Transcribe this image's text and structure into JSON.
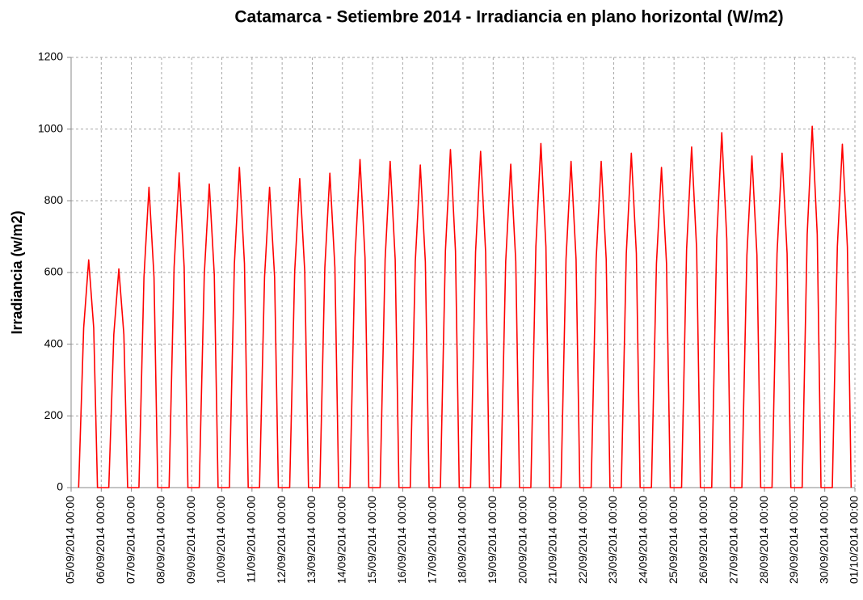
{
  "chart_data": {
    "type": "line",
    "title": "Catamarca - Setiembre 2014 - Irradiancia en plano horizontal (W/m2)",
    "y_label": "Irradiancia (w/m2)",
    "color": "#ff0000",
    "grid": true,
    "ylim": [
      0,
      1200
    ],
    "yticks": [
      0,
      200,
      400,
      600,
      800,
      1000,
      1200
    ],
    "xlim": [
      "05/09/2014 00:00",
      "01/10/2014 00:00"
    ],
    "xticks": [
      "05/09/2014 00:00",
      "06/09/2014 00:00",
      "07/09/2014 00:00",
      "08/09/2014 00:00",
      "09/09/2014 00:00",
      "10/09/2014 00:00",
      "11/09/2014 00:00",
      "12/09/2014 00:00",
      "13/09/2014 00:00",
      "14/09/2014 00:00",
      "15/09/2014 00:00",
      "16/09/2014 00:00",
      "17/09/2014 00:00",
      "18/09/2014 00:00",
      "19/09/2014 00:00",
      "20/09/2014 00:00",
      "21/09/2014 00:00",
      "22/09/2014 00:00",
      "23/09/2014 00:00",
      "24/09/2014 00:00",
      "25/09/2014 00:00",
      "26/09/2014 00:00",
      "27/09/2014 00:00",
      "28/09/2014 00:00",
      "29/09/2014 00:00",
      "30/09/2014 00:00",
      "01/10/2014 00:00"
    ],
    "x": [
      "05/09/2014 06:00",
      "05/09/2014 10:00",
      "05/09/2014 14:00",
      "05/09/2014 18:00",
      "05/09/2014 21:00",
      "06/09/2014 06:00",
      "06/09/2014 10:00",
      "06/09/2014 14:00",
      "06/09/2014 18:00",
      "06/09/2014 21:00",
      "07/09/2014 06:00",
      "07/09/2014 10:00",
      "07/09/2014 14:00",
      "07/09/2014 18:00",
      "07/09/2014 21:00",
      "08/09/2014 06:00",
      "08/09/2014 10:00",
      "08/09/2014 14:00",
      "08/09/2014 18:00",
      "08/09/2014 21:00",
      "09/09/2014 06:00",
      "09/09/2014 10:00",
      "09/09/2014 14:00",
      "09/09/2014 18:00",
      "09/09/2014 21:00",
      "10/09/2014 06:00",
      "10/09/2014 10:00",
      "10/09/2014 14:00",
      "10/09/2014 18:00",
      "10/09/2014 21:00",
      "11/09/2014 06:00",
      "11/09/2014 10:00",
      "11/09/2014 14:00",
      "11/09/2014 18:00",
      "11/09/2014 21:00",
      "12/09/2014 06:00",
      "12/09/2014 10:00",
      "12/09/2014 14:00",
      "12/09/2014 18:00",
      "12/09/2014 21:00",
      "13/09/2014 06:00",
      "13/09/2014 10:00",
      "13/09/2014 14:00",
      "13/09/2014 18:00",
      "13/09/2014 21:00",
      "14/09/2014 06:00",
      "14/09/2014 10:00",
      "14/09/2014 14:00",
      "14/09/2014 18:00",
      "14/09/2014 21:00",
      "15/09/2014 06:00",
      "15/09/2014 10:00",
      "15/09/2014 14:00",
      "15/09/2014 18:00",
      "15/09/2014 21:00",
      "16/09/2014 06:00",
      "16/09/2014 10:00",
      "16/09/2014 14:00",
      "16/09/2014 18:00",
      "16/09/2014 21:00",
      "17/09/2014 06:00",
      "17/09/2014 10:00",
      "17/09/2014 14:00",
      "17/09/2014 18:00",
      "17/09/2014 21:00",
      "18/09/2014 06:00",
      "18/09/2014 10:00",
      "18/09/2014 14:00",
      "18/09/2014 18:00",
      "18/09/2014 21:00",
      "19/09/2014 06:00",
      "19/09/2014 10:00",
      "19/09/2014 14:00",
      "19/09/2014 18:00",
      "19/09/2014 21:00",
      "20/09/2014 06:00",
      "20/09/2014 10:00",
      "20/09/2014 14:00",
      "20/09/2014 18:00",
      "20/09/2014 21:00",
      "21/09/2014 06:00",
      "21/09/2014 10:00",
      "21/09/2014 14:00",
      "21/09/2014 18:00",
      "21/09/2014 21:00",
      "22/09/2014 06:00",
      "22/09/2014 10:00",
      "22/09/2014 14:00",
      "22/09/2014 18:00",
      "22/09/2014 21:00",
      "23/09/2014 06:00",
      "23/09/2014 10:00",
      "23/09/2014 14:00",
      "23/09/2014 18:00",
      "23/09/2014 21:00",
      "24/09/2014 06:00",
      "24/09/2014 10:00",
      "24/09/2014 14:00",
      "24/09/2014 18:00",
      "24/09/2014 21:00",
      "25/09/2014 06:00",
      "25/09/2014 10:00",
      "25/09/2014 14:00",
      "25/09/2014 18:00",
      "25/09/2014 21:00",
      "26/09/2014 06:00",
      "26/09/2014 10:00",
      "26/09/2014 14:00",
      "26/09/2014 18:00",
      "26/09/2014 21:00",
      "27/09/2014 06:00",
      "27/09/2014 10:00",
      "27/09/2014 14:00",
      "27/09/2014 18:00",
      "27/09/2014 21:00",
      "28/09/2014 06:00",
      "28/09/2014 10:00",
      "28/09/2014 14:00",
      "28/09/2014 18:00",
      "28/09/2014 21:00",
      "29/09/2014 06:00",
      "29/09/2014 10:00",
      "29/09/2014 14:00",
      "29/09/2014 18:00",
      "29/09/2014 21:00",
      "30/09/2014 06:00",
      "30/09/2014 10:00",
      "30/09/2014 14:00",
      "30/09/2014 18:00",
      "30/09/2014 21:00"
    ],
    "values": [
      0,
      445,
      635,
      445,
      0,
      0,
      427,
      610,
      427,
      0,
      0,
      587,
      838,
      587,
      0,
      0,
      615,
      878,
      615,
      0,
      0,
      593,
      847,
      593,
      0,
      0,
      625,
      893,
      625,
      0,
      0,
      587,
      838,
      587,
      0,
      0,
      603,
      862,
      603,
      0,
      0,
      614,
      877,
      614,
      0,
      0,
      641,
      915,
      641,
      0,
      0,
      637,
      910,
      637,
      0,
      0,
      630,
      900,
      630,
      0,
      0,
      660,
      943,
      660,
      0,
      0,
      657,
      938,
      657,
      0,
      0,
      631,
      902,
      631,
      0,
      0,
      672,
      960,
      672,
      0,
      0,
      637,
      910,
      637,
      0,
      0,
      637,
      910,
      637,
      0,
      0,
      653,
      933,
      653,
      0,
      0,
      625,
      893,
      625,
      0,
      0,
      665,
      950,
      665,
      0,
      0,
      693,
      990,
      693,
      0,
      0,
      648,
      925,
      648,
      0,
      0,
      653,
      933,
      653,
      0,
      0,
      706,
      1008,
      706,
      0,
      0,
      671,
      958,
      671,
      0
    ]
  }
}
